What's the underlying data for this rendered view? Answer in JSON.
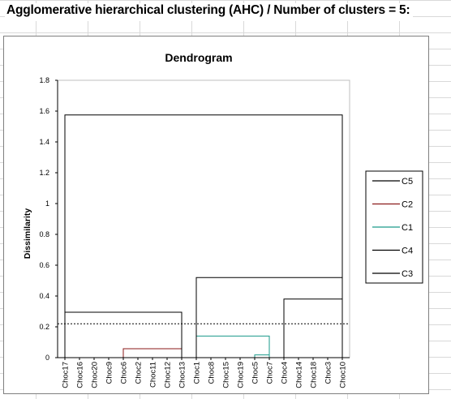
{
  "page": {
    "heading": "Agglomerative hierarchical clustering (AHC) / Number of clusters = 5:"
  },
  "chart_data": {
    "type": "dendrogram",
    "title": "Dendrogram",
    "ylabel": "Dissimilarity",
    "xlabel": "",
    "ylim": [
      0,
      1.8
    ],
    "yticks": [
      "0",
      "0.2",
      "0.4",
      "0.6",
      "0.8",
      "1",
      "1.2",
      "1.4",
      "1.6",
      "1.8"
    ],
    "grid": false,
    "legend_position": "right",
    "truncation_level": 0.22,
    "leaves": [
      "Choc17",
      "Choc16",
      "Choc20",
      "Choc9",
      "Choc6",
      "Choc2",
      "Choc11",
      "Choc12",
      "Choc13",
      "Choc1",
      "Choc8",
      "Choc15",
      "Choc19",
      "Choc5",
      "Choc7",
      "Choc4",
      "Choc14",
      "Choc18",
      "Choc3",
      "Choc10"
    ],
    "clusters": [
      {
        "name": "C5",
        "color": "#000000",
        "members": [
          "Choc17",
          "Choc16",
          "Choc20",
          "Choc9"
        ]
      },
      {
        "name": "C2",
        "color": "#8b1a1a",
        "members": [
          "Choc6",
          "Choc2",
          "Choc11",
          "Choc12",
          "Choc13"
        ]
      },
      {
        "name": "C1",
        "color": "#1a9a8a",
        "members": [
          "Choc1",
          "Choc8",
          "Choc15",
          "Choc19",
          "Choc5",
          "Choc7"
        ]
      },
      {
        "name": "C4",
        "color": "#000000",
        "members": [
          "Choc4",
          "Choc14"
        ]
      },
      {
        "name": "C3",
        "color": "#000000",
        "members": [
          "Choc18",
          "Choc3",
          "Choc10"
        ]
      }
    ],
    "merges": [
      {
        "left": [
          0,
          3
        ],
        "height": 0.0,
        "color": "#000000"
      },
      {
        "left": [
          4,
          8
        ],
        "height": 0.058,
        "color": "#8b1a1a"
      },
      {
        "left": [
          13,
          14
        ],
        "height": 0.018,
        "color": "#1a9a8a"
      },
      {
        "left": [
          9,
          14
        ],
        "height": 0.14,
        "color": "#1a9a8a"
      },
      {
        "left": [
          15,
          16
        ],
        "height": 0.0,
        "color": "#000000"
      },
      {
        "left": [
          17,
          19
        ],
        "height": 0.0,
        "color": "#000000"
      },
      {
        "left": [
          0,
          8
        ],
        "height": 0.295,
        "color": "#000000"
      },
      {
        "left": [
          15,
          19
        ],
        "height": 0.38,
        "color": "#000000"
      },
      {
        "left": [
          9,
          19
        ],
        "height": 0.52,
        "color": "#000000"
      },
      {
        "left": [
          0,
          19
        ],
        "height": 1.575,
        "color": "#000000"
      }
    ]
  }
}
